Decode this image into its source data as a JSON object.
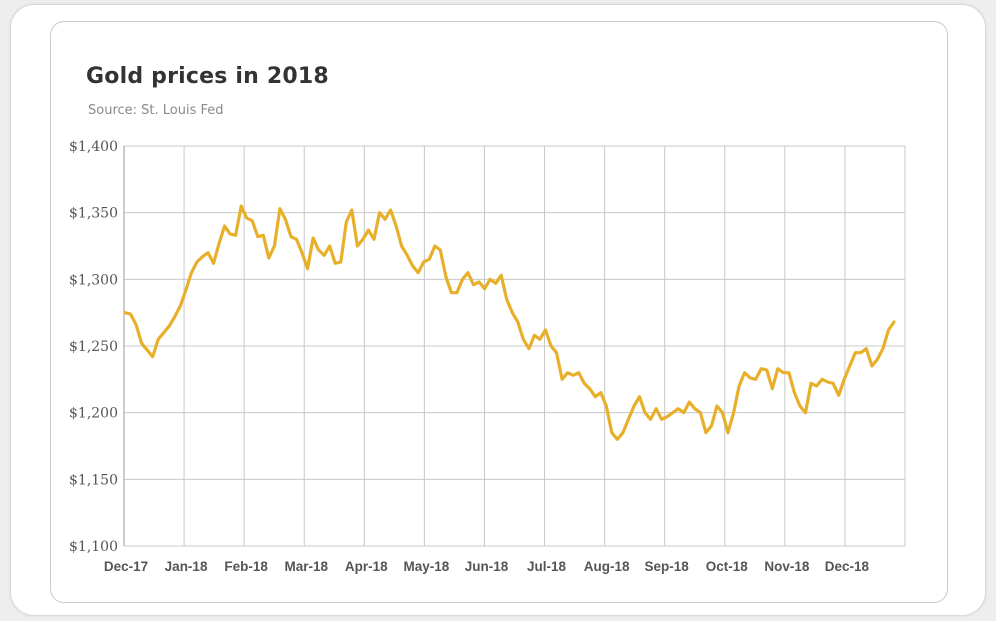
{
  "header": {
    "title": "Gold prices in 2018",
    "subtitle": "Source: St. Louis Fed"
  },
  "colors": {
    "line": "#E8B02A",
    "grid": "#c8c8c8",
    "axis_text": "#555555"
  },
  "chart_data": {
    "type": "line",
    "title": "Gold prices in 2018",
    "subtitle": "Source: St. Louis Fed",
    "xlabel": "",
    "ylabel": "",
    "ylim": [
      1100,
      1400
    ],
    "yticks": [
      1100,
      1150,
      1200,
      1250,
      1300,
      1350,
      1400
    ],
    "ytick_labels": [
      "$1,100",
      "$1,150",
      "$1,200",
      "$1,250",
      "$1,300",
      "$1,350",
      "$1,400"
    ],
    "xtick_labels": [
      "Dec-17",
      "Jan-18",
      "Feb-18",
      "Mar-18",
      "Apr-18",
      "May-18",
      "Jun-18",
      "Jul-18",
      "Aug-18",
      "Sep-18",
      "Oct-18",
      "Nov-18",
      "Dec-18"
    ],
    "grid": true,
    "series": [
      {
        "values": [
          1275,
          1274,
          1266,
          1252,
          1247,
          1242,
          1255,
          1260,
          1265,
          1272,
          1280,
          1292,
          1305,
          1313,
          1317,
          1320,
          1312,
          1327,
          1340,
          1334,
          1333,
          1355,
          1346,
          1344,
          1332,
          1333,
          1316,
          1325,
          1353,
          1345,
          1332,
          1330,
          1320,
          1308,
          1331,
          1322,
          1318,
          1325,
          1312,
          1313,
          1343,
          1352,
          1325,
          1330,
          1337,
          1330,
          1350,
          1345,
          1352,
          1340,
          1325,
          1318,
          1310,
          1305,
          1313,
          1315,
          1325,
          1322,
          1302,
          1290,
          1290,
          1300,
          1305,
          1296,
          1298,
          1293,
          1300,
          1297,
          1303,
          1285,
          1275,
          1268,
          1255,
          1248,
          1258,
          1255,
          1262,
          1250,
          1245,
          1225,
          1230,
          1228,
          1230,
          1222,
          1218,
          1212,
          1215,
          1205,
          1185,
          1180,
          1185,
          1195,
          1205,
          1212,
          1200,
          1195,
          1203,
          1195,
          1197,
          1200,
          1203,
          1200,
          1208,
          1203,
          1200,
          1185,
          1190,
          1205,
          1200,
          1185,
          1200,
          1220,
          1230,
          1226,
          1225,
          1233,
          1232,
          1218,
          1233,
          1230,
          1230,
          1215,
          1205,
          1200,
          1222,
          1220,
          1225,
          1223,
          1222,
          1213,
          1225,
          1235,
          1245,
          1245,
          1248,
          1235,
          1240,
          1248,
          1262,
          1268
        ]
      }
    ]
  }
}
